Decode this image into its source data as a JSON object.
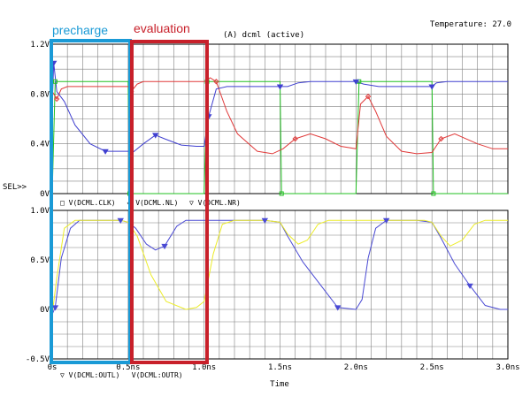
{
  "header": {
    "title": "(A) dcml (active)",
    "temperature": "Temperature: 27.0"
  },
  "annotations": {
    "precharge": {
      "label": "precharge",
      "color": "#1a9ad6"
    },
    "evaluation": {
      "label": "evaluation",
      "color": "#c8202a"
    }
  },
  "colors": {
    "grid": "#808080",
    "plot_border": "#000000",
    "clk": "#22c022",
    "nl": "#e03a3a",
    "nr": "#4040d0",
    "outl": "#4a4ad4",
    "outr": "#ecec2a"
  },
  "chart_data": [
    {
      "type": "line",
      "panel": "top",
      "ylim": [
        0,
        1.2
      ],
      "xlim": [
        0,
        3.0
      ],
      "y_ticks": [
        {
          "v": 1.2,
          "label": "1.2V"
        },
        {
          "v": 0.8,
          "label": "0.8V"
        },
        {
          "v": 0.4,
          "label": "0.4V"
        },
        {
          "v": 0,
          "label": "0V"
        }
      ],
      "sel_label": "SEL>>",
      "series": [
        {
          "name": "V(DCML.CLK)",
          "marker": "square",
          "legend": "□ V(DCML.CLK)",
          "points": [
            [
              0,
              0
            ],
            [
              0.02,
              0.9
            ],
            [
              0.5,
              0.9
            ],
            [
              0.51,
              0
            ],
            [
              1.0,
              0
            ],
            [
              1.02,
              0.9
            ],
            [
              1.5,
              0.9
            ],
            [
              1.51,
              0
            ],
            [
              2.0,
              0
            ],
            [
              2.02,
              0.9
            ],
            [
              2.5,
              0.9
            ],
            [
              2.51,
              0
            ],
            [
              3.0,
              0
            ]
          ]
        },
        {
          "name": "V(DCML.NL)",
          "marker": "diamond",
          "legend": "◇ V(DCML.NL)",
          "points": [
            [
              0,
              0.82
            ],
            [
              0.03,
              0.76
            ],
            [
              0.06,
              0.84
            ],
            [
              0.1,
              0.86
            ],
            [
              0.2,
              0.86
            ],
            [
              0.3,
              0.86
            ],
            [
              0.5,
              0.86
            ],
            [
              0.52,
              0.82
            ],
            [
              0.56,
              0.88
            ],
            [
              0.6,
              0.9
            ],
            [
              0.8,
              0.9
            ],
            [
              1.0,
              0.9
            ],
            [
              1.04,
              0.93
            ],
            [
              1.08,
              0.9
            ],
            [
              1.15,
              0.66
            ],
            [
              1.22,
              0.48
            ],
            [
              1.35,
              0.34
            ],
            [
              1.45,
              0.32
            ],
            [
              1.52,
              0.36
            ],
            [
              1.6,
              0.44
            ],
            [
              1.7,
              0.48
            ],
            [
              1.8,
              0.44
            ],
            [
              1.9,
              0.38
            ],
            [
              2.0,
              0.36
            ],
            [
              2.03,
              0.72
            ],
            [
              2.08,
              0.78
            ],
            [
              2.13,
              0.66
            ],
            [
              2.2,
              0.46
            ],
            [
              2.3,
              0.34
            ],
            [
              2.4,
              0.32
            ],
            [
              2.5,
              0.33
            ],
            [
              2.56,
              0.44
            ],
            [
              2.65,
              0.48
            ],
            [
              2.8,
              0.4
            ],
            [
              2.9,
              0.36
            ],
            [
              3.0,
              0.36
            ]
          ]
        },
        {
          "name": "V(DCML.NR)",
          "marker": "triangle-down",
          "legend": "▽ V(DCML.NR)",
          "points": [
            [
              0,
              0.7
            ],
            [
              0.01,
              1.05
            ],
            [
              0.03,
              0.82
            ],
            [
              0.08,
              0.74
            ],
            [
              0.15,
              0.55
            ],
            [
              0.25,
              0.4
            ],
            [
              0.35,
              0.34
            ],
            [
              0.45,
              0.34
            ],
            [
              0.5,
              0.34
            ],
            [
              0.52,
              0.32
            ],
            [
              0.6,
              0.4
            ],
            [
              0.68,
              0.47
            ],
            [
              0.74,
              0.44
            ],
            [
              0.85,
              0.39
            ],
            [
              0.95,
              0.38
            ],
            [
              1.0,
              0.38
            ],
            [
              1.03,
              0.62
            ],
            [
              1.08,
              0.84
            ],
            [
              1.15,
              0.86
            ],
            [
              1.3,
              0.86
            ],
            [
              1.45,
              0.86
            ],
            [
              1.5,
              0.86
            ],
            [
              1.55,
              0.86
            ],
            [
              1.62,
              0.89
            ],
            [
              1.7,
              0.9
            ],
            [
              1.9,
              0.9
            ],
            [
              2.0,
              0.9
            ],
            [
              2.05,
              0.88
            ],
            [
              2.15,
              0.86
            ],
            [
              2.3,
              0.86
            ],
            [
              2.45,
              0.86
            ],
            [
              2.5,
              0.86
            ],
            [
              2.53,
              0.89
            ],
            [
              2.6,
              0.9
            ],
            [
              3.0,
              0.9
            ]
          ]
        }
      ]
    },
    {
      "type": "line",
      "panel": "bottom",
      "ylim": [
        -0.5,
        1.0
      ],
      "xlim": [
        0,
        3.0
      ],
      "y_ticks": [
        {
          "v": 1.0,
          "label": "1.0V"
        },
        {
          "v": 0.5,
          "label": "0.5V"
        },
        {
          "v": 0,
          "label": "0V"
        },
        {
          "v": -0.5,
          "label": "-0.5V"
        }
      ],
      "x_ticks": [
        {
          "v": 0,
          "label": "0s"
        },
        {
          "v": 0.5,
          "label": "0.5ns"
        },
        {
          "v": 1.0,
          "label": "1.0ns"
        },
        {
          "v": 1.5,
          "label": "1.5ns"
        },
        {
          "v": 2.0,
          "label": "2.0ns"
        },
        {
          "v": 2.5,
          "label": "2.5ns"
        },
        {
          "v": 3.0,
          "label": "3.0ns"
        }
      ],
      "xlabel": "Time",
      "series": [
        {
          "name": "V(DCML:OUTL)",
          "marker": "triangle-down",
          "legend": "▽ V(DCML:OUTL)",
          "points": [
            [
              0,
              -0.05
            ],
            [
              0.02,
              0.02
            ],
            [
              0.06,
              0.52
            ],
            [
              0.12,
              0.82
            ],
            [
              0.18,
              0.9
            ],
            [
              0.3,
              0.9
            ],
            [
              0.45,
              0.9
            ],
            [
              0.5,
              0.88
            ],
            [
              0.55,
              0.82
            ],
            [
              0.62,
              0.66
            ],
            [
              0.68,
              0.6
            ],
            [
              0.74,
              0.64
            ],
            [
              0.82,
              0.84
            ],
            [
              0.88,
              0.9
            ],
            [
              1.0,
              0.9
            ],
            [
              1.2,
              0.9
            ],
            [
              1.4,
              0.9
            ],
            [
              1.5,
              0.88
            ],
            [
              1.55,
              0.74
            ],
            [
              1.65,
              0.48
            ],
            [
              1.78,
              0.22
            ],
            [
              1.88,
              0.02
            ],
            [
              2.0,
              0
            ],
            [
              2.04,
              0.1
            ],
            [
              2.08,
              0.52
            ],
            [
              2.13,
              0.82
            ],
            [
              2.2,
              0.9
            ],
            [
              2.4,
              0.9
            ],
            [
              2.5,
              0.88
            ],
            [
              2.56,
              0.72
            ],
            [
              2.65,
              0.46
            ],
            [
              2.75,
              0.24
            ],
            [
              2.85,
              0.04
            ],
            [
              2.95,
              0
            ],
            [
              3.0,
              0
            ]
          ]
        },
        {
          "name": "V(DCML:OUTR)",
          "marker": "none",
          "legend": "V(DCML:OUTR)",
          "points": [
            [
              0,
              -0.05
            ],
            [
              0.03,
              0.32
            ],
            [
              0.08,
              0.82
            ],
            [
              0.15,
              0.9
            ],
            [
              0.3,
              0.9
            ],
            [
              0.45,
              0.9
            ],
            [
              0.5,
              0.88
            ],
            [
              0.56,
              0.74
            ],
            [
              0.65,
              0.35
            ],
            [
              0.75,
              0.08
            ],
            [
              0.88,
              0
            ],
            [
              0.95,
              0.02
            ],
            [
              1.0,
              0.08
            ],
            [
              1.06,
              0.56
            ],
            [
              1.12,
              0.86
            ],
            [
              1.2,
              0.9
            ],
            [
              1.4,
              0.9
            ],
            [
              1.5,
              0.88
            ],
            [
              1.55,
              0.76
            ],
            [
              1.62,
              0.66
            ],
            [
              1.68,
              0.7
            ],
            [
              1.75,
              0.86
            ],
            [
              1.82,
              0.9
            ],
            [
              2.0,
              0.9
            ],
            [
              2.2,
              0.9
            ],
            [
              2.45,
              0.9
            ],
            [
              2.5,
              0.88
            ],
            [
              2.56,
              0.74
            ],
            [
              2.62,
              0.64
            ],
            [
              2.7,
              0.7
            ],
            [
              2.78,
              0.86
            ],
            [
              2.85,
              0.9
            ],
            [
              3.0,
              0.9
            ]
          ]
        }
      ]
    }
  ]
}
